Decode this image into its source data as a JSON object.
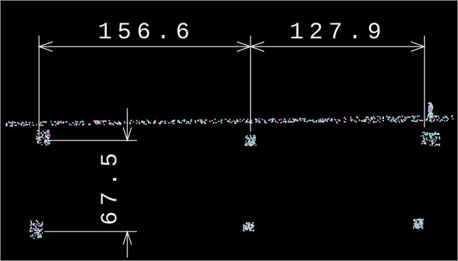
{
  "dimensions": [
    {
      "label": "156.6"
    },
    {
      "label": "127.9"
    },
    {
      "label": "67.5"
    }
  ]
}
